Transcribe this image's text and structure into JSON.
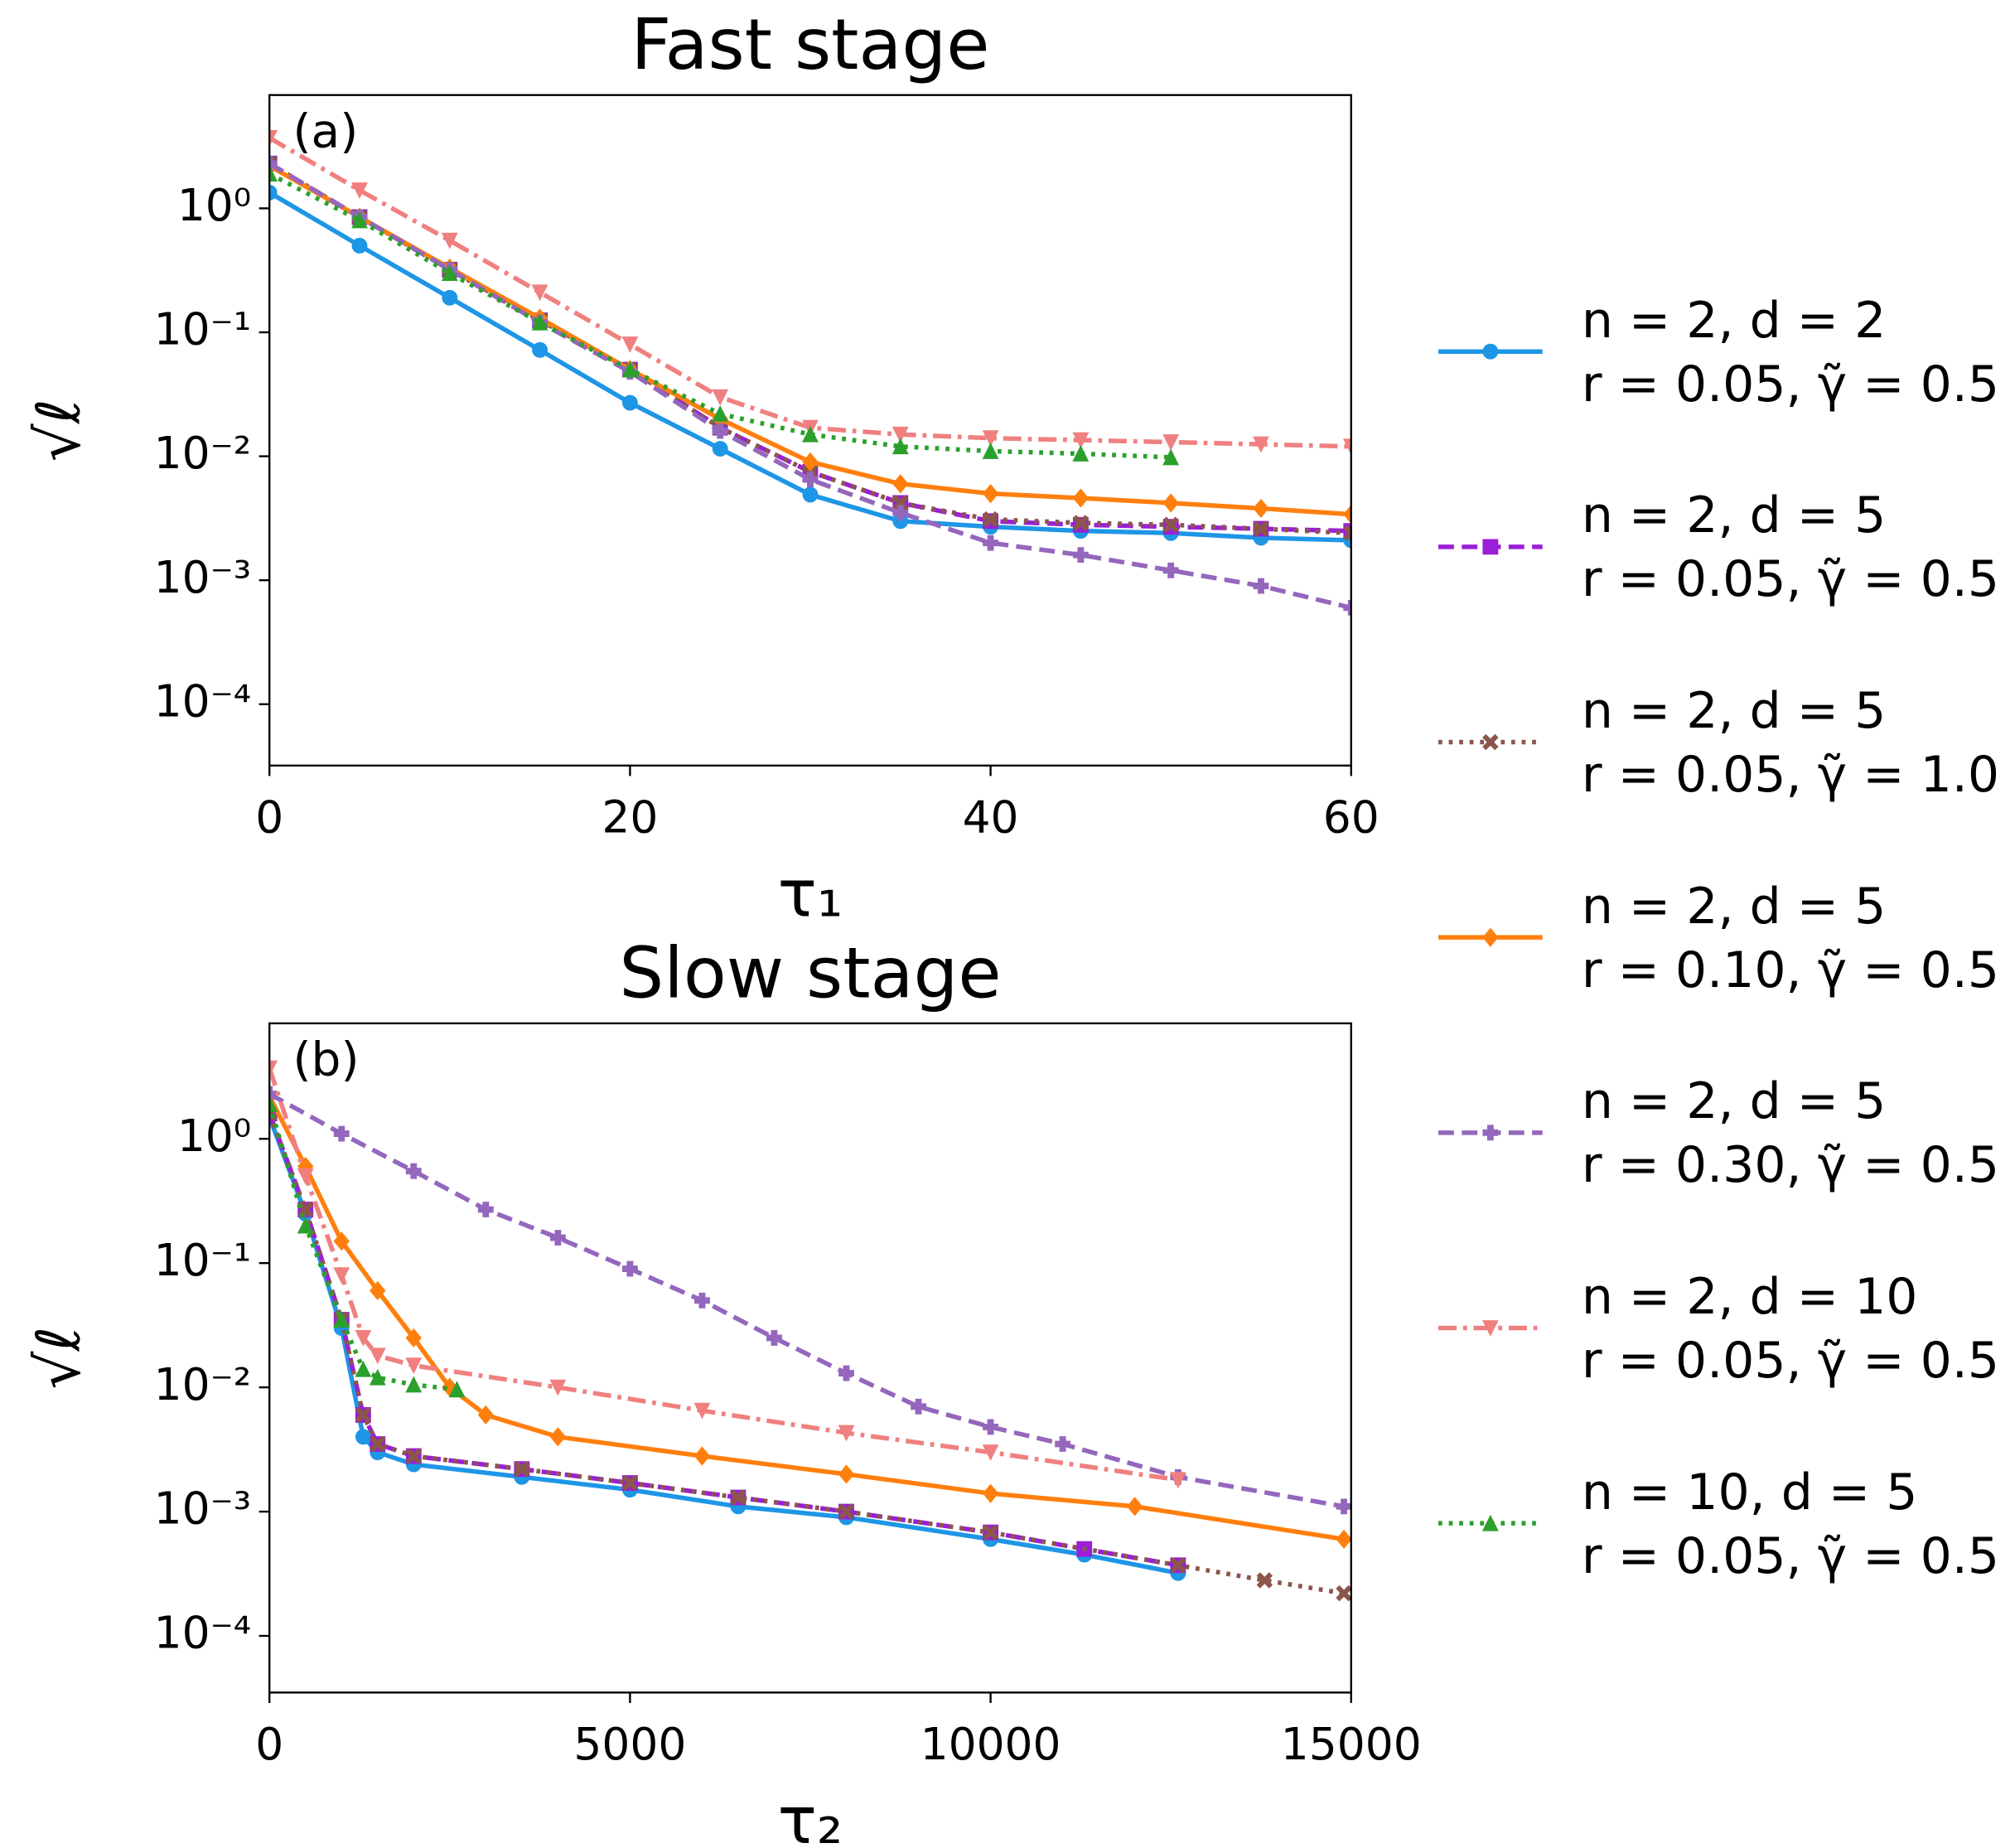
{
  "chart_data": [
    {
      "type": "line",
      "title": "Fast stage",
      "panel_label": "(a)",
      "xlabel": "τ₁",
      "ylabel": "√ℓ",
      "yscale": "log",
      "xlim": [
        0,
        60
      ],
      "xticks": [
        0,
        20,
        40,
        60
      ],
      "ylim": [
        3.2e-05,
        8.2
      ],
      "yticks": [
        {
          "value": 1,
          "label": "10⁰"
        },
        {
          "value": 0.1,
          "label": "10⁻¹"
        },
        {
          "value": 0.01,
          "label": "10⁻²"
        },
        {
          "value": 0.001,
          "label": "10⁻³"
        },
        {
          "value": 0.0001,
          "label": "10⁻⁴"
        }
      ],
      "series": [
        {
          "name": "n = 2,  d = 2\nr = 0.05,  γ̃ = 0.5",
          "color": "#1e96e6",
          "linestyle": "solid",
          "marker": "circle",
          "x": [
            0,
            5,
            10,
            15,
            20,
            25,
            30,
            35,
            40,
            45,
            50,
            55,
            60
          ],
          "values": [
            1.34,
            0.5,
            0.19,
            0.072,
            0.027,
            0.0115,
            0.0049,
            0.003,
            0.0027,
            0.0025,
            0.0024,
            0.0022,
            0.0021
          ]
        },
        {
          "name": "n = 2,  d = 5\nr = 0.05,  γ̃ = 0.5",
          "color": "#9b1fd6",
          "linestyle": "dashed",
          "marker": "square",
          "x": [
            0,
            5,
            10,
            15,
            20,
            25,
            30,
            35,
            40,
            45,
            50,
            55,
            60
          ],
          "values": [
            2.3,
            0.85,
            0.32,
            0.125,
            0.05,
            0.017,
            0.0075,
            0.0042,
            0.003,
            0.0028,
            0.0027,
            0.0026,
            0.0025
          ]
        },
        {
          "name": "n = 2,  d = 5\nr = 0.05,  γ̃ = 1.0",
          "color": "#8c564b",
          "linestyle": "dotted",
          "marker": "x",
          "x": [
            0,
            5,
            10,
            15,
            20,
            25,
            30,
            35,
            40,
            45,
            50,
            55,
            60
          ],
          "values": [
            2.3,
            0.85,
            0.32,
            0.125,
            0.05,
            0.017,
            0.0075,
            0.0042,
            0.0031,
            0.0029,
            0.0028,
            0.0026,
            0.0024
          ]
        },
        {
          "name": "n = 2,  d = 5\nr = 0.10,  γ̃ = 0.5",
          "color": "#ff7f0e",
          "linestyle": "solid",
          "marker": "diamond",
          "x": [
            0,
            5,
            10,
            15,
            20,
            25,
            30,
            35,
            40,
            45,
            50,
            55,
            60
          ],
          "values": [
            2.2,
            0.85,
            0.33,
            0.13,
            0.05,
            0.02,
            0.009,
            0.006,
            0.005,
            0.0046,
            0.0042,
            0.0038,
            0.0034
          ]
        },
        {
          "name": "n = 2,  d = 5\nr = 0.30,  γ̃ = 0.5",
          "color": "#9467bd",
          "linestyle": "dashed",
          "marker": "plus",
          "x": [
            0,
            5,
            10,
            15,
            20,
            25,
            30,
            35,
            40,
            45,
            50,
            55,
            60
          ],
          "values": [
            2.3,
            0.85,
            0.32,
            0.12,
            0.048,
            0.016,
            0.0065,
            0.0035,
            0.002,
            0.0016,
            0.0012,
            0.0009,
            0.0006
          ]
        },
        {
          "name": "n = 2,  d = 10\nr = 0.05,  γ̃ = 0.5",
          "color": "#f08080",
          "linestyle": "dashdot",
          "marker": "triangle-down",
          "x": [
            0,
            5,
            10,
            15,
            20,
            25,
            30,
            35,
            40,
            45,
            50,
            55,
            60
          ],
          "values": [
            3.7,
            1.4,
            0.55,
            0.21,
            0.08,
            0.03,
            0.017,
            0.015,
            0.014,
            0.0135,
            0.013,
            0.0125,
            0.012
          ]
        },
        {
          "name": "n = 10,  d = 5\nr = 0.05,  γ̃ = 0.5",
          "color": "#2ca02c",
          "linestyle": "dotted",
          "marker": "triangle-up",
          "x": [
            0,
            5,
            10,
            15,
            20,
            25,
            30,
            35,
            40,
            45,
            50
          ],
          "values": [
            1.9,
            0.8,
            0.3,
            0.12,
            0.05,
            0.022,
            0.015,
            0.012,
            0.011,
            0.0105,
            0.0098
          ]
        }
      ]
    },
    {
      "type": "line",
      "title": "Slow stage",
      "panel_label": "(b)",
      "xlabel": "τ₂",
      "ylabel": "√ℓ",
      "yscale": "log",
      "xlim": [
        0,
        15000
      ],
      "xticks": [
        0,
        5000,
        10000,
        15000
      ],
      "ylim": [
        3.5e-05,
        8.5
      ],
      "yticks": [
        {
          "value": 1,
          "label": "10⁰"
        },
        {
          "value": 0.1,
          "label": "10⁻¹"
        },
        {
          "value": 0.01,
          "label": "10⁻²"
        },
        {
          "value": 0.001,
          "label": "10⁻³"
        },
        {
          "value": 0.0001,
          "label": "10⁻⁴"
        }
      ],
      "series": [
        {
          "color": "#1e96e6",
          "linestyle": "solid",
          "marker": "circle",
          "x": [
            0,
            500,
            1000,
            1300,
            1500,
            2000,
            3500,
            5000,
            6500,
            8000,
            10000,
            11300,
            12600
          ],
          "values": [
            1.5,
            0.25,
            0.03,
            0.004,
            0.003,
            0.0024,
            0.0019,
            0.0015,
            0.0011,
            0.0009,
            0.0006,
            0.00045,
            0.00032
          ]
        },
        {
          "color": "#9b1fd6",
          "linestyle": "dashed",
          "marker": "square",
          "x": [
            0,
            500,
            1000,
            1300,
            1500,
            2000,
            3500,
            5000,
            6500,
            8000,
            10000,
            11300,
            12600
          ],
          "values": [
            1.6,
            0.27,
            0.035,
            0.006,
            0.0035,
            0.0028,
            0.0022,
            0.0017,
            0.0013,
            0.001,
            0.00068,
            0.0005,
            0.00037
          ]
        },
        {
          "color": "#8c564b",
          "linestyle": "dotted",
          "marker": "x",
          "x": [
            0,
            500,
            1000,
            1300,
            1500,
            2000,
            3500,
            5000,
            6500,
            8000,
            10000,
            12600,
            13800,
            14900
          ],
          "values": [
            1.6,
            0.27,
            0.035,
            0.006,
            0.0035,
            0.0028,
            0.0022,
            0.0017,
            0.0013,
            0.001,
            0.00068,
            0.00037,
            0.00028,
            0.00022
          ]
        },
        {
          "color": "#ff7f0e",
          "linestyle": "solid",
          "marker": "diamond",
          "x": [
            0,
            500,
            1000,
            1500,
            2000,
            2500,
            3000,
            4000,
            6000,
            8000,
            10000,
            12000,
            14900
          ],
          "values": [
            2.2,
            0.6,
            0.15,
            0.06,
            0.025,
            0.01,
            0.006,
            0.004,
            0.0028,
            0.002,
            0.0014,
            0.0011,
            0.0006
          ]
        },
        {
          "color": "#9467bd",
          "linestyle": "dashed",
          "marker": "plus",
          "x": [
            0,
            1000,
            2000,
            3000,
            4000,
            5000,
            6000,
            7000,
            8000,
            9000,
            10000,
            11000,
            12600,
            14900
          ],
          "values": [
            2.3,
            1.1,
            0.55,
            0.27,
            0.16,
            0.09,
            0.05,
            0.025,
            0.013,
            0.007,
            0.0048,
            0.0035,
            0.0019,
            0.0011
          ]
        },
        {
          "color": "#f08080",
          "linestyle": "dashdot",
          "marker": "triangle-down",
          "x": [
            0,
            500,
            1000,
            1300,
            1500,
            2000,
            4000,
            6000,
            8000,
            10000,
            12600
          ],
          "values": [
            3.7,
            0.5,
            0.08,
            0.025,
            0.018,
            0.015,
            0.01,
            0.0065,
            0.0043,
            0.003,
            0.0018
          ]
        },
        {
          "color": "#2ca02c",
          "linestyle": "dotted",
          "marker": "triangle-up",
          "x": [
            0,
            500,
            1000,
            1300,
            1500,
            2000,
            2600
          ],
          "values": [
            1.9,
            0.2,
            0.035,
            0.014,
            0.012,
            0.0105,
            0.0096
          ]
        }
      ]
    }
  ]
}
